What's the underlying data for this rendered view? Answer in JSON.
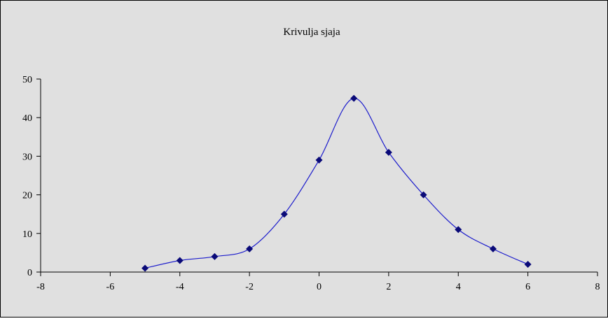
{
  "chart_data": {
    "type": "scatter",
    "title": "Krivulja sjaja",
    "xlabel": "",
    "ylabel": "",
    "xlim": [
      -8,
      8
    ],
    "ylim": [
      0,
      50
    ],
    "x_ticks": [
      -8,
      -6,
      -4,
      -2,
      0,
      2,
      4,
      6,
      8
    ],
    "y_ticks": [
      0,
      10,
      20,
      30,
      40,
      50
    ],
    "grid": false,
    "legend": "none",
    "smoothed_line": true,
    "series": [
      {
        "x": [
          -5,
          -4,
          -3,
          -2,
          -1,
          0,
          1,
          2,
          3,
          4,
          5,
          6
        ],
        "y": [
          1,
          3,
          4,
          6,
          15,
          29,
          45,
          31,
          20,
          11,
          6,
          2
        ],
        "marker": "diamond"
      }
    ]
  },
  "colors": {
    "plot_background": "#e0e0e0",
    "line": "#1c1ccc",
    "marker": "#0a0a78",
    "axis": "#000000"
  }
}
